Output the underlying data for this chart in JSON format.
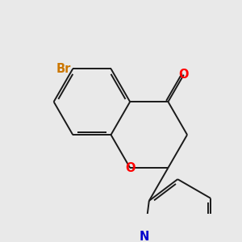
{
  "bg_color": "#e9e9e9",
  "bond_color": "#1a1a1a",
  "bond_width": 1.4,
  "atom_colors": {
    "O_carbonyl": "#ff0000",
    "O_ring": "#ff0000",
    "N": "#0000cc",
    "Br": "#cc7700"
  },
  "font_size_atoms": 10.5,
  "font_size_Br": 10.5,
  "scale": 1.0
}
